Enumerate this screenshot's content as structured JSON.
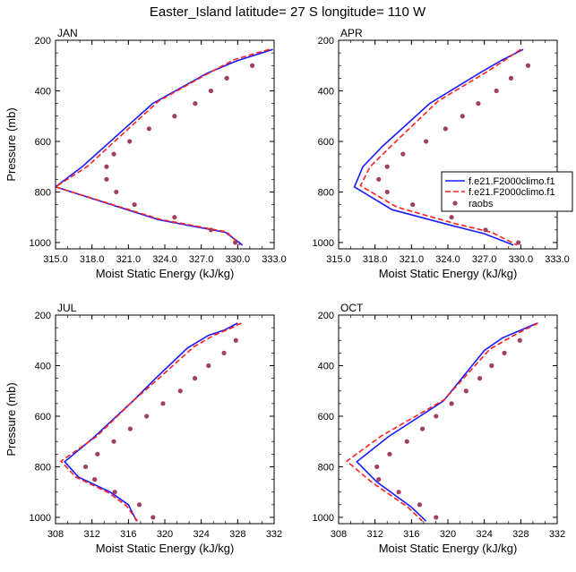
{
  "title": "Easter_Island  latitude= 27 S longitude= 110 W",
  "colors": {
    "model1": "#1a1aff",
    "model2": "#ff2020",
    "raobs": "#a0405a"
  },
  "legend": {
    "entries": [
      "f.e21.F2000climo.f1",
      "f.e21.F2000climo.f1",
      "raobs"
    ]
  },
  "chart_data": [
    {
      "type": "line",
      "title": "JAN",
      "xlabel": "Moist Static Energy (kJ/kg)",
      "ylabel": "Pressure (mb)",
      "xlim": [
        315,
        333
      ],
      "ylim": [
        200,
        1025
      ],
      "y_inverted": true,
      "xticks": [
        "315.0",
        "318.0",
        "321.0",
        "324.0",
        "327.0",
        "330.0",
        "333.0"
      ],
      "xtick_values": [
        315,
        318,
        321,
        324,
        327,
        330,
        333
      ],
      "yticks": [
        200,
        400,
        600,
        800,
        1000
      ],
      "series": [
        {
          "name": "f.e21.F2000climo.f1",
          "style": "solid",
          "points": [
            [
              332.9,
              236
            ],
            [
              330.0,
              280
            ],
            [
              327.5,
              330
            ],
            [
              323.0,
              450
            ],
            [
              317.2,
              700
            ],
            [
              315.0,
              780
            ],
            [
              323.5,
              910
            ],
            [
              329.0,
              960
            ],
            [
              330.4,
              1010
            ]
          ]
        },
        {
          "name": "f.e21.F2000climo.f1",
          "style": "dashed",
          "points": [
            [
              332.6,
              236
            ],
            [
              329.8,
              275
            ],
            [
              327.8,
              325
            ],
            [
              323.5,
              440
            ],
            [
              317.6,
              700
            ],
            [
              315.0,
              780
            ],
            [
              323.6,
              908
            ],
            [
              329.1,
              958
            ],
            [
              330.2,
              1010
            ]
          ]
        },
        {
          "name": "raobs",
          "style": "markers",
          "points": [
            [
              331.2,
              300
            ],
            [
              329.1,
              350
            ],
            [
              327.8,
              400
            ],
            [
              326.5,
              450
            ],
            [
              324.8,
              500
            ],
            [
              322.7,
              550
            ],
            [
              321.1,
              600
            ],
            [
              319.8,
              650
            ],
            [
              319.2,
              700
            ],
            [
              319.2,
              750
            ],
            [
              320.0,
              800
            ],
            [
              321.5,
              850
            ],
            [
              324.8,
              900
            ],
            [
              327.8,
              950
            ],
            [
              329.8,
              1000
            ]
          ]
        }
      ]
    },
    {
      "type": "line",
      "title": "APR",
      "xlabel": "Moist Static Energy (kJ/kg)",
      "ylabel": "Pressure (mb)",
      "xlim": [
        315,
        333
      ],
      "ylim": [
        200,
        1025
      ],
      "y_inverted": true,
      "xticks": [
        "315.0",
        "318.0",
        "321.0",
        "324.0",
        "327.0",
        "330.0",
        "333.0"
      ],
      "xtick_values": [
        315,
        318,
        321,
        324,
        327,
        330,
        333
      ],
      "yticks": [
        200,
        400,
        600,
        800,
        1000
      ],
      "series": [
        {
          "name": "f.e21.F2000climo.f1",
          "style": "solid",
          "points": [
            [
              330.2,
              236
            ],
            [
              328.4,
              280
            ],
            [
              326.6,
              330
            ],
            [
              322.5,
              450
            ],
            [
              318.6,
              620
            ],
            [
              317.0,
              700
            ],
            [
              316.3,
              780
            ],
            [
              319.4,
              870
            ],
            [
              324.1,
              930
            ],
            [
              327.0,
              965
            ],
            [
              329.4,
              1010
            ]
          ]
        },
        {
          "name": "f.e21.F2000climo.f1",
          "style": "dashed",
          "points": [
            [
              330.0,
              236
            ],
            [
              328.8,
              275
            ],
            [
              327.2,
              325
            ],
            [
              323.2,
              440
            ],
            [
              319.5,
              610
            ],
            [
              317.6,
              700
            ],
            [
              316.8,
              775
            ],
            [
              319.8,
              860
            ],
            [
              324.6,
              925
            ],
            [
              327.6,
              960
            ],
            [
              329.7,
              1010
            ]
          ]
        },
        {
          "name": "raobs",
          "style": "markers",
          "points": [
            [
              330.6,
              300
            ],
            [
              329.2,
              350
            ],
            [
              328.0,
              400
            ],
            [
              326.5,
              450
            ],
            [
              325.2,
              500
            ],
            [
              323.8,
              550
            ],
            [
              322.2,
              600
            ],
            [
              320.3,
              650
            ],
            [
              319.0,
              700
            ],
            [
              318.3,
              750
            ],
            [
              319.0,
              800
            ],
            [
              321.1,
              850
            ],
            [
              324.3,
              900
            ],
            [
              327.1,
              950
            ],
            [
              329.8,
              1000
            ]
          ]
        }
      ]
    },
    {
      "type": "line",
      "title": "JUL",
      "xlabel": "Moist Static Energy (kJ/kg)",
      "ylabel": "Pressure (mb)",
      "xlim": [
        308,
        332
      ],
      "ylim": [
        200,
        1025
      ],
      "y_inverted": true,
      "xticks": [
        "308",
        "312",
        "316",
        "320",
        "324",
        "328",
        "332"
      ],
      "xtick_values": [
        308,
        312,
        316,
        320,
        324,
        328,
        332
      ],
      "yticks": [
        200,
        400,
        600,
        800,
        1000
      ],
      "series": [
        {
          "name": "f.e21.F2000climo.f1",
          "style": "solid",
          "points": [
            [
              328.0,
              232
            ],
            [
              326.5,
              260
            ],
            [
              324.8,
              280
            ],
            [
              322.5,
              330
            ],
            [
              319.0,
              450
            ],
            [
              316.5,
              540
            ],
            [
              312.0,
              690
            ],
            [
              309.0,
              780
            ],
            [
              310.5,
              840
            ],
            [
              314.0,
              900
            ],
            [
              316.0,
              950
            ],
            [
              316.9,
              1015
            ]
          ]
        },
        {
          "name": "f.e21.F2000climo.f1",
          "style": "dashed",
          "points": [
            [
              328.4,
              232
            ],
            [
              327.0,
              256
            ],
            [
              325.5,
              278
            ],
            [
              323.2,
              325
            ],
            [
              319.5,
              445
            ],
            [
              316.5,
              540
            ],
            [
              312.5,
              680
            ],
            [
              308.6,
              778
            ],
            [
              310.2,
              840
            ],
            [
              313.8,
              902
            ],
            [
              315.8,
              955
            ],
            [
              317.0,
              1015
            ]
          ]
        },
        {
          "name": "raobs",
          "style": "markers",
          "points": [
            [
              327.8,
              300
            ],
            [
              326.5,
              350
            ],
            [
              324.8,
              400
            ],
            [
              323.3,
              450
            ],
            [
              321.7,
              500
            ],
            [
              319.8,
              550
            ],
            [
              318.0,
              600
            ],
            [
              316.2,
              650
            ],
            [
              314.4,
              700
            ],
            [
              312.6,
              750
            ],
            [
              311.3,
              800
            ],
            [
              312.3,
              850
            ],
            [
              314.5,
              900
            ],
            [
              317.2,
              950
            ],
            [
              318.7,
              1000
            ]
          ]
        }
      ]
    },
    {
      "type": "line",
      "title": "OCT",
      "xlabel": "Moist Static Energy (kJ/kg)",
      "ylabel": "Pressure (mb)",
      "xlim": [
        308,
        332
      ],
      "ylim": [
        200,
        1025
      ],
      "y_inverted": true,
      "xticks": [
        "308",
        "312",
        "316",
        "320",
        "324",
        "328",
        "332"
      ],
      "xtick_values": [
        308,
        312,
        316,
        320,
        324,
        328,
        332
      ],
      "yticks": [
        200,
        400,
        600,
        800,
        1000
      ],
      "series": [
        {
          "name": "f.e21.F2000climo.f1",
          "style": "solid",
          "points": [
            [
              329.8,
              232
            ],
            [
              328.0,
              260
            ],
            [
              326.0,
              290
            ],
            [
              324.0,
              340
            ],
            [
              319.5,
              540
            ],
            [
              313.5,
              680
            ],
            [
              310.0,
              780
            ],
            [
              312.2,
              860
            ],
            [
              316.0,
              960
            ],
            [
              317.6,
              1015
            ]
          ]
        },
        {
          "name": "f.e21.F2000climo.f1",
          "style": "dashed",
          "points": [
            [
              329.9,
              232
            ],
            [
              328.6,
              255
            ],
            [
              327.0,
              285
            ],
            [
              324.6,
              335
            ],
            [
              319.6,
              535
            ],
            [
              312.6,
              680
            ],
            [
              308.9,
              778
            ],
            [
              311.6,
              860
            ],
            [
              315.6,
              960
            ],
            [
              317.2,
              1015
            ]
          ]
        },
        {
          "name": "raobs",
          "style": "markers",
          "points": [
            [
              327.9,
              300
            ],
            [
              326.2,
              350
            ],
            [
              324.8,
              400
            ],
            [
              323.5,
              450
            ],
            [
              322.0,
              500
            ],
            [
              320.4,
              550
            ],
            [
              318.7,
              600
            ],
            [
              317.2,
              650
            ],
            [
              315.5,
              700
            ],
            [
              313.6,
              750
            ],
            [
              312.2,
              800
            ],
            [
              312.4,
              850
            ],
            [
              314.6,
              900
            ],
            [
              316.9,
              950
            ],
            [
              318.7,
              1000
            ]
          ]
        }
      ]
    }
  ]
}
